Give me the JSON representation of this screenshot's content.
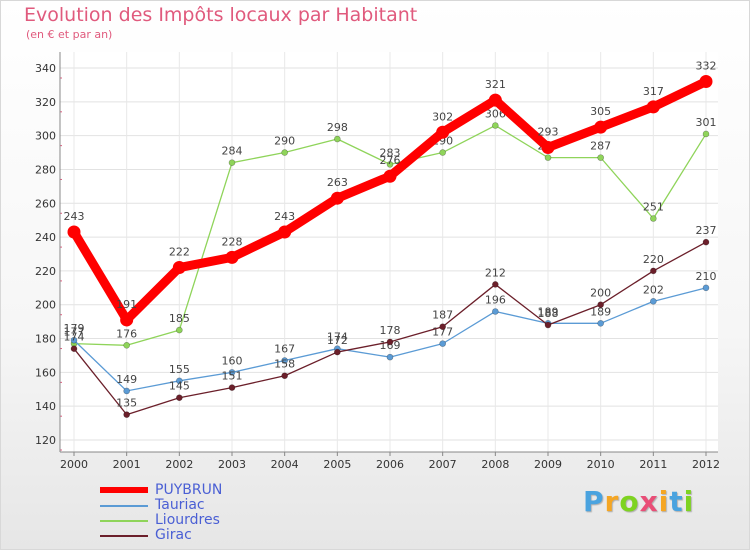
{
  "chart_data": {
    "type": "line",
    "title": "Evolution des Impôts locaux par Habitant",
    "subtitle": "(en € et par an)",
    "x": [
      "2000",
      "2001",
      "2002",
      "2003",
      "2004",
      "2005",
      "2006",
      "2007",
      "2008",
      "2009",
      "2010",
      "2011",
      "2012"
    ],
    "ylim": [
      120,
      340
    ],
    "yticks": [
      120,
      140,
      160,
      180,
      200,
      220,
      240,
      260,
      280,
      300,
      320,
      340
    ],
    "grid": true,
    "legend_position": "bottom-left",
    "series": [
      {
        "name": "Liourdres",
        "color": "#8fd45a",
        "values": [
          177,
          176,
          185,
          284,
          290,
          298,
          283,
          290,
          306,
          287,
          287,
          251,
          301
        ]
      },
      {
        "name": "Tauriac",
        "color": "#5b9bd5",
        "values": [
          179,
          149,
          155,
          160,
          167,
          174,
          169,
          177,
          196,
          189,
          189,
          202,
          210
        ]
      },
      {
        "name": "Girac",
        "color": "#6b1f2a",
        "values": [
          174,
          135,
          145,
          151,
          158,
          172,
          178,
          187,
          212,
          188,
          200,
          220,
          237
        ]
      },
      {
        "name": "PUYBRUN",
        "color": "#ff0000",
        "values": [
          243,
          191,
          222,
          228,
          243,
          263,
          276,
          302,
          321,
          293,
          305,
          317,
          332
        ]
      }
    ]
  },
  "legend": {
    "items": [
      {
        "name": "PUYBRUN",
        "color": "#ff0000"
      },
      {
        "name": "Tauriac",
        "color": "#5b9bd5"
      },
      {
        "name": "Liourdres",
        "color": "#8fd45a"
      },
      {
        "name": "Girac",
        "color": "#6b1f2a"
      }
    ]
  },
  "logo": {
    "letters": [
      "P",
      "r",
      "o",
      "x",
      "i",
      "t",
      "i"
    ],
    "colors": [
      "#4aa3df",
      "#f5a623",
      "#7ed321",
      "#e94e77",
      "#f5a623",
      "#4aa3df",
      "#7ed321"
    ]
  }
}
